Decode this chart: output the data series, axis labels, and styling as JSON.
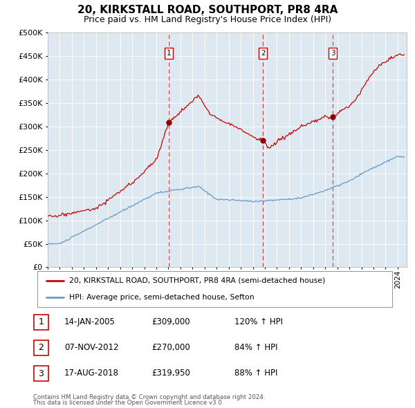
{
  "title": "20, KIRKSTALL ROAD, SOUTHPORT, PR8 4RA",
  "subtitle": "Price paid vs. HM Land Registry's House Price Index (HPI)",
  "legend_line1": "20, KIRKSTALL ROAD, SOUTHPORT, PR8 4RA (semi-detached house)",
  "legend_line2": "HPI: Average price, semi-detached house, Sefton",
  "footer1": "Contains HM Land Registry data © Crown copyright and database right 2024.",
  "footer2": "This data is licensed under the Open Government Licence v3.0.",
  "transactions": [
    {
      "num": 1,
      "date": "14-JAN-2005",
      "price": "309,000",
      "hpi_pct": "120%",
      "arrow": "↑"
    },
    {
      "num": 2,
      "date": "07-NOV-2012",
      "price": "270,000",
      "hpi_pct": "84%",
      "arrow": "↑"
    },
    {
      "num": 3,
      "date": "17-AUG-2018",
      "price": "319,950",
      "hpi_pct": "88%",
      "arrow": "↑"
    }
  ],
  "transaction_dates_decimal": [
    2005.04,
    2012.85,
    2018.63
  ],
  "transaction_prices": [
    309000,
    270000,
    319950
  ],
  "ylim": [
    0,
    500000
  ],
  "yticks": [
    0,
    50000,
    100000,
    150000,
    200000,
    250000,
    300000,
    350000,
    400000,
    450000,
    500000
  ],
  "xlim_start": 1995,
  "xlim_end": 2024.75,
  "background_color": "#dde8f0",
  "red_line_color": "#cc0000",
  "blue_line_color": "#6699cc",
  "dot_color": "#8b0000",
  "dashed_line_color": "#dd4444",
  "box_border_color": "#cc0000",
  "title_fontsize": 11,
  "subtitle_fontsize": 9,
  "axis_label_fontsize": 7.5,
  "ytick_fontsize": 8
}
